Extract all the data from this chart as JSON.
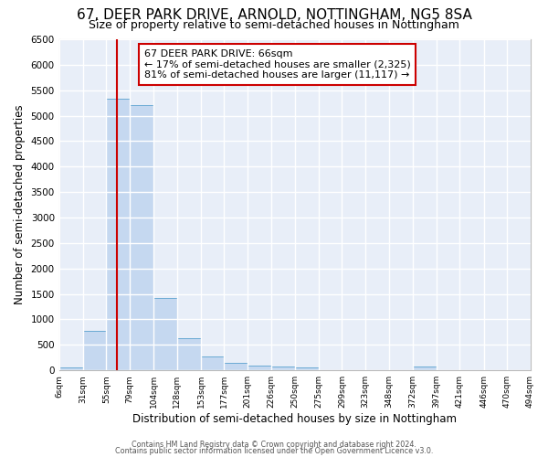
{
  "title": "67, DEER PARK DRIVE, ARNOLD, NOTTINGHAM, NG5 8SA",
  "subtitle": "Size of property relative to semi-detached houses in Nottingham",
  "xlabel": "Distribution of semi-detached houses by size in Nottingham",
  "ylabel": "Number of semi-detached properties",
  "bar_color": "#c5d8f0",
  "bar_edge_color": "#6aaad4",
  "bg_color": "#e8eef8",
  "grid_color": "white",
  "annotation_text": "67 DEER PARK DRIVE: 66sqm\n← 17% of semi-detached houses are smaller (2,325)\n81% of semi-detached houses are larger (11,117) →",
  "property_size": 66,
  "red_line_color": "#cc0000",
  "bin_edges": [
    6,
    31,
    55,
    79,
    104,
    128,
    153,
    177,
    201,
    226,
    250,
    275,
    299,
    323,
    348,
    372,
    397,
    421,
    446,
    470,
    494
  ],
  "bin_labels": [
    "6sqm",
    "31sqm",
    "55sqm",
    "79sqm",
    "104sqm",
    "128sqm",
    "153sqm",
    "177sqm",
    "201sqm",
    "226sqm",
    "250sqm",
    "275sqm",
    "299sqm",
    "323sqm",
    "348sqm",
    "372sqm",
    "397sqm",
    "421sqm",
    "446sqm",
    "470sqm",
    "494sqm"
  ],
  "counts": [
    55,
    780,
    5330,
    5210,
    1420,
    630,
    270,
    140,
    90,
    70,
    55,
    0,
    0,
    0,
    0,
    70,
    0,
    0,
    0,
    0
  ],
  "ylim": [
    0,
    6500
  ],
  "yticks": [
    0,
    500,
    1000,
    1500,
    2000,
    2500,
    3000,
    3500,
    4000,
    4500,
    5000,
    5500,
    6000,
    6500
  ],
  "footer1": "Contains HM Land Registry data © Crown copyright and database right 2024.",
  "footer2": "Contains public sector information licensed under the Open Government Licence v3.0."
}
